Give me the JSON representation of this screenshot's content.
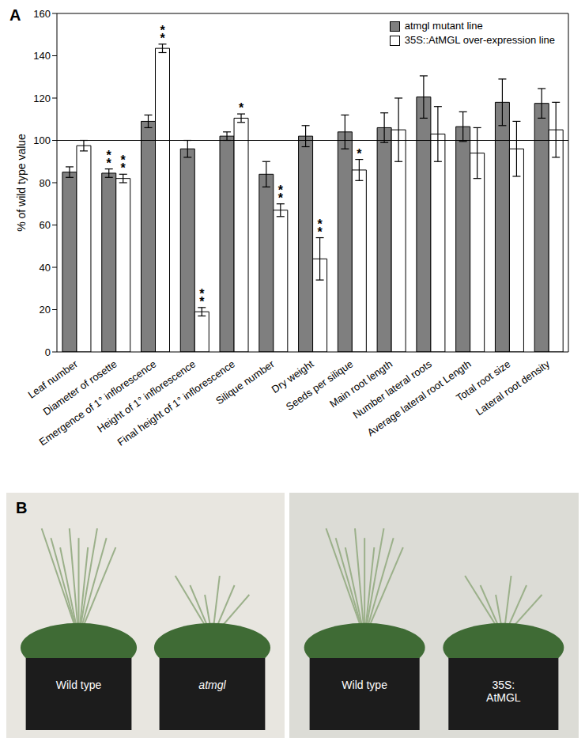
{
  "chart_data": {
    "type": "bar",
    "panel_label": "A",
    "y_label": "% of wild type value",
    "categories": [
      "Leaf number",
      "Diameter of rosette",
      "Emergence of 1° inflorescence",
      "Height of  1° inflorescence",
      "Final height of  1° inflorescence",
      "Silique number",
      "Dry weight",
      "Seeds per silique",
      "Main root length",
      "Number lateral roots",
      "Average lateral root Length",
      "Total root size",
      "Lateral root density"
    ],
    "series": [
      {
        "name": "atmgl mutant line",
        "color": "#7f7f7f",
        "values": [
          85,
          84.5,
          109,
          96,
          102,
          84,
          102,
          104,
          106,
          120.5,
          106.5,
          118,
          117.5
        ],
        "errors": [
          2.5,
          2,
          3,
          4,
          2,
          6,
          5,
          8,
          7,
          10,
          7,
          11,
          7
        ],
        "significance": [
          null,
          "**",
          null,
          null,
          null,
          null,
          null,
          null,
          null,
          null,
          null,
          null,
          null
        ]
      },
      {
        "name": "35S::AtMGL over-expression line",
        "color": "#ffffff",
        "values": [
          97.5,
          82,
          143.5,
          19,
          110.5,
          67,
          44,
          86,
          105,
          103,
          94,
          96,
          105
        ],
        "errors": [
          2.5,
          2,
          2,
          2,
          2,
          3,
          10,
          5,
          15,
          13,
          12,
          13,
          13
        ],
        "significance": [
          null,
          "**",
          "**",
          "**",
          "*",
          "**",
          "**",
          "*",
          null,
          null,
          null,
          null,
          null
        ]
      }
    ],
    "ylim": [
      0,
      160
    ],
    "yticks": [
      0,
      20,
      40,
      60,
      80,
      100,
      120,
      140,
      160
    ],
    "hline": 100,
    "grid": false,
    "legend": "top-right"
  },
  "panel_b": {
    "label": "B",
    "photos": [
      {
        "labels": [
          "Wild type",
          "atmgl"
        ]
      },
      {
        "labels": [
          "Wild type",
          "35S:\nAtMGL"
        ]
      }
    ]
  }
}
